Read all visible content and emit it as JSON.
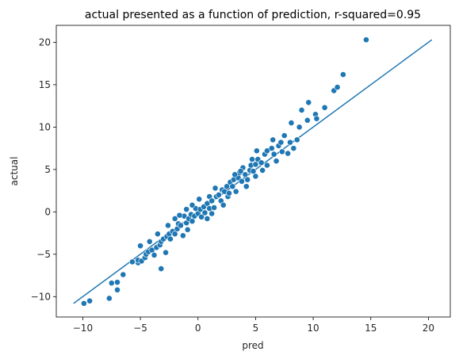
{
  "chart_data": {
    "type": "scatter",
    "title": "actual presented as a function of prediction, r-squared=0.95",
    "xlabel": "pred",
    "ylabel": "actual",
    "xlim": [
      -12.3,
      21.9
    ],
    "ylim": [
      -12.4,
      22.0
    ],
    "xticks": [
      -10,
      -5,
      0,
      5,
      10,
      15,
      20
    ],
    "yticks": [
      -10,
      -5,
      0,
      5,
      10,
      15,
      20
    ],
    "xtick_labels": [
      "−10",
      "−5",
      "0",
      "5",
      "10",
      "15",
      "20"
    ],
    "ytick_labels": [
      "−10",
      "−5",
      "0",
      "5",
      "10",
      "15",
      "20"
    ],
    "grid": false,
    "marker_color": "#1f77b4",
    "line_color": "#1f77b4",
    "fit_line": {
      "x": [
        -10.8,
        20.3
      ],
      "y": [
        -10.8,
        20.3
      ]
    },
    "points": [
      [
        -9.9,
        -10.8
      ],
      [
        -9.4,
        -10.5
      ],
      [
        -7.7,
        -10.2
      ],
      [
        -7.5,
        -8.4
      ],
      [
        -7.0,
        -8.3
      ],
      [
        -7.0,
        -9.2
      ],
      [
        -6.5,
        -7.4
      ],
      [
        -5.7,
        -5.9
      ],
      [
        -5.2,
        -6.0
      ],
      [
        -5.2,
        -5.7
      ],
      [
        -4.9,
        -5.8
      ],
      [
        -5.0,
        -4.0
      ],
      [
        -4.6,
        -5.4
      ],
      [
        -4.5,
        -5.0
      ],
      [
        -4.3,
        -4.7
      ],
      [
        -4.0,
        -4.5
      ],
      [
        -3.8,
        -5.1
      ],
      [
        -3.6,
        -4.2
      ],
      [
        -3.3,
        -3.9
      ],
      [
        -3.2,
        -3.5
      ],
      [
        -3.0,
        -3.2
      ],
      [
        -3.2,
        -6.7
      ],
      [
        -2.8,
        -4.8
      ],
      [
        -2.7,
        -2.9
      ],
      [
        -2.5,
        -2.6
      ],
      [
        -2.4,
        -3.2
      ],
      [
        -2.2,
        -2.3
      ],
      [
        -2.0,
        -0.8
      ],
      [
        -2.0,
        -2.6
      ],
      [
        -1.8,
        -2.0
      ],
      [
        -1.7,
        -1.4
      ],
      [
        -1.5,
        -1.6
      ],
      [
        -1.3,
        -2.8
      ],
      [
        -1.2,
        -0.5
      ],
      [
        -1.0,
        -1.3
      ],
      [
        -0.8,
        -0.8
      ],
      [
        -0.6,
        -0.3
      ],
      [
        -0.5,
        -1.1
      ],
      [
        -0.3,
        -0.5
      ],
      [
        -0.2,
        0.4
      ],
      [
        0.0,
        -0.2
      ],
      [
        0.2,
        0.3
      ],
      [
        0.3,
        -0.6
      ],
      [
        0.5,
        0.6
      ],
      [
        0.6,
        -0.1
      ],
      [
        0.8,
        1.0
      ],
      [
        1.0,
        0.4
      ],
      [
        1.0,
        1.8
      ],
      [
        1.2,
        1.3
      ],
      [
        1.4,
        0.5
      ],
      [
        1.6,
        1.8
      ],
      [
        1.8,
        2.0
      ],
      [
        2.0,
        1.3
      ],
      [
        2.1,
        2.6
      ],
      [
        2.3,
        2.4
      ],
      [
        2.5,
        3.0
      ],
      [
        2.6,
        1.8
      ],
      [
        2.8,
        3.5
      ],
      [
        3.0,
        3.0
      ],
      [
        3.1,
        3.8
      ],
      [
        3.3,
        2.4
      ],
      [
        3.5,
        4.0
      ],
      [
        3.6,
        4.6
      ],
      [
        3.8,
        3.6
      ],
      [
        3.9,
        5.2
      ],
      [
        4.1,
        4.4
      ],
      [
        4.3,
        3.8
      ],
      [
        4.5,
        4.9
      ],
      [
        4.6,
        5.5
      ],
      [
        4.8,
        4.8
      ],
      [
        5.0,
        5.6
      ],
      [
        5.0,
        4.2
      ],
      [
        5.1,
        7.2
      ],
      [
        5.2,
        6.2
      ],
      [
        5.5,
        5.8
      ],
      [
        5.8,
        6.8
      ],
      [
        6.0,
        5.5
      ],
      [
        6.0,
        7.2
      ],
      [
        6.4,
        7.5
      ],
      [
        6.5,
        8.5
      ],
      [
        6.8,
        6.0
      ],
      [
        7.0,
        7.8
      ],
      [
        7.3,
        7.1
      ],
      [
        7.5,
        9.0
      ],
      [
        7.8,
        6.9
      ],
      [
        8.0,
        8.2
      ],
      [
        8.1,
        10.5
      ],
      [
        8.3,
        7.5
      ],
      [
        8.6,
        8.5
      ],
      [
        8.8,
        10.0
      ],
      [
        9.0,
        12.0
      ],
      [
        9.5,
        10.8
      ],
      [
        9.6,
        12.9
      ],
      [
        10.2,
        11.5
      ],
      [
        10.3,
        11.0
      ],
      [
        11.0,
        12.3
      ],
      [
        11.8,
        14.3
      ],
      [
        12.1,
        14.7
      ],
      [
        12.6,
        16.2
      ],
      [
        14.6,
        20.3
      ],
      [
        -0.5,
        0.8
      ],
      [
        0.8,
        -0.8
      ],
      [
        -1.0,
        0.3
      ],
      [
        1.5,
        2.8
      ],
      [
        2.2,
        0.8
      ],
      [
        3.7,
        4.8
      ],
      [
        4.2,
        3.0
      ],
      [
        -2.6,
        -1.6
      ],
      [
        -3.5,
        -2.6
      ],
      [
        5.6,
        4.9
      ],
      [
        6.6,
        6.8
      ],
      [
        7.2,
        8.2
      ],
      [
        -4.2,
        -3.5
      ],
      [
        0.1,
        1.5
      ],
      [
        2.7,
        2.2
      ],
      [
        -1.6,
        -0.4
      ],
      [
        4.7,
        6.2
      ],
      [
        1.2,
        -0.2
      ],
      [
        -0.9,
        -2.1
      ],
      [
        3.2,
        4.4
      ]
    ]
  }
}
